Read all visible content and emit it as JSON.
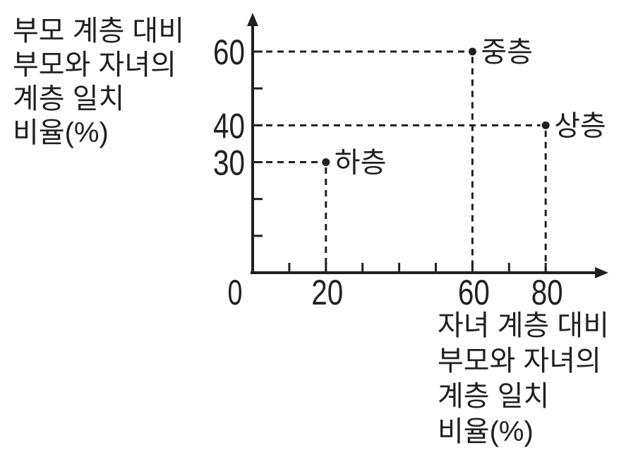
{
  "colors": {
    "ink": "#231f20",
    "background": "#ffffff"
  },
  "chart_data": {
    "type": "scatter",
    "title": "",
    "points": [
      {
        "label": "하층",
        "x": 20,
        "y": 30
      },
      {
        "label": "중층",
        "x": 60,
        "y": 60
      },
      {
        "label": "상층",
        "x": 80,
        "y": 40
      }
    ],
    "xlabel": "자녀 계층 대비 부모와 자녀의 계층 일치 비율(%)",
    "ylabel": "부모 계층 대비 부모와 자녀의 계층 일치 비율(%)",
    "xlabel_lines": [
      "자녀 계층 대비",
      "부모와 자녀의",
      "계층 일치",
      "비율(%)"
    ],
    "ylabel_lines": [
      "부모 계층 대비",
      "부모와 자녀의",
      "계층 일치",
      "비율(%)"
    ],
    "origin_label": "0",
    "x_ticks": [
      10,
      20,
      30,
      40,
      50,
      60,
      70,
      80
    ],
    "y_ticks": [
      10,
      20,
      30,
      40,
      50,
      60
    ],
    "x_tick_labels": [
      20,
      60,
      80
    ],
    "y_tick_labels": [
      30,
      40,
      60
    ],
    "xlim": [
      0,
      97
    ],
    "ylim": [
      0,
      70
    ],
    "grid": false,
    "projection_lines": "dashed",
    "legend": "none"
  }
}
